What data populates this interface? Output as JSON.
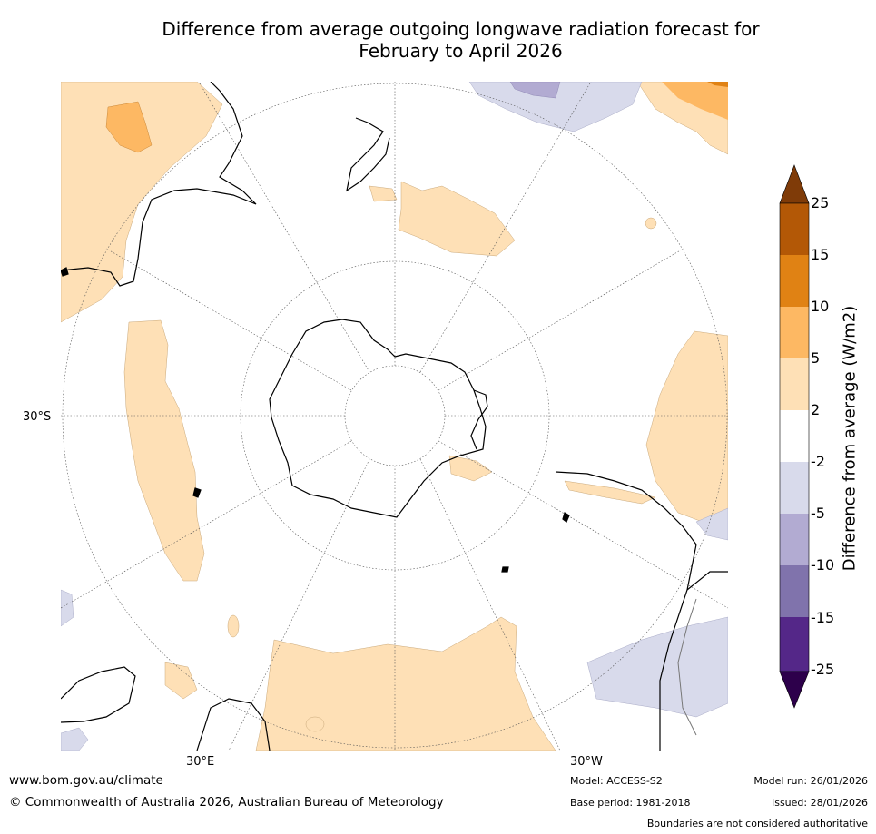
{
  "title": {
    "line1": "Difference from average outgoing longwave radiation forecast for",
    "line2": "February to April 2026"
  },
  "map": {
    "lat_label": "30°S",
    "lon_labels": [
      "30°E",
      "30°W"
    ]
  },
  "colorbar": {
    "label": "Difference from average (W/m2)",
    "ticks": [
      "25",
      "15",
      "10",
      "5",
      "2",
      "-2",
      "-5",
      "-10",
      "-15",
      "-25"
    ],
    "colors": {
      "above_25": "#7f3b08",
      "15_25": "#b35806",
      "10_15": "#e08214",
      "5_10": "#fdb863",
      "2_5": "#fee0b6",
      "neutral": "#ffffff",
      "m5_m2": "#d8daeb",
      "m10_m5": "#b2abd2",
      "m15_m10": "#8073ac",
      "m25_m15": "#542788",
      "below_m25": "#2d004b"
    }
  },
  "footer": {
    "website": "www.bom.gov.au/climate",
    "copyright": "© Commonwealth of Australia 2026, Australian Bureau of Meteorology",
    "model": "Model: ACCESS-S2",
    "base_period": "Base period: 1981-2018",
    "model_run": "Model run: 26/01/2026",
    "issued": "Issued: 28/01/2026",
    "disclaimer": "Boundaries are not considered authoritative"
  }
}
